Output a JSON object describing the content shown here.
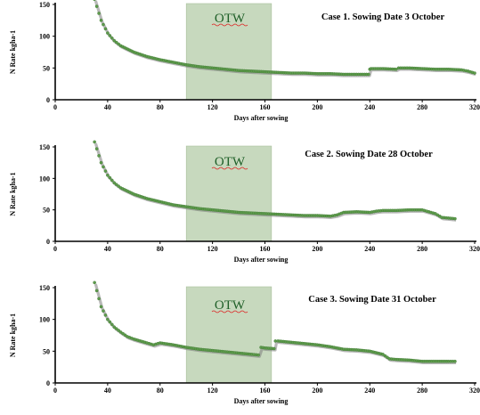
{
  "chart_data": [
    {
      "type": "scatter",
      "title": "Case 1. Sowing Date 3 October",
      "xlabel": "Days after sowing",
      "ylabel": "N Rate kgha-1",
      "xlim": [
        0,
        320
      ],
      "ylim": [
        0,
        150
      ],
      "xticks": [
        "0",
        "40",
        "80",
        "120",
        "160",
        "200",
        "240",
        "280",
        "320"
      ],
      "yticks": [
        "0",
        "50",
        "100",
        "150"
      ],
      "shaded_region": {
        "label": "OTW",
        "x_start": 100,
        "x_end": 165,
        "color": "#c7d9be"
      },
      "series": [
        {
          "color": "#5e9b4c",
          "x": [
            30,
            35,
            40,
            45,
            50,
            60,
            70,
            80,
            90,
            100,
            110,
            120,
            130,
            140,
            150,
            160,
            170,
            180,
            190,
            200,
            210,
            220,
            230,
            239,
            240,
            241,
            250,
            260,
            262,
            270,
            280,
            290,
            300,
            310,
            315,
            320
          ],
          "y": [
            158,
            125,
            105,
            93,
            85,
            75,
            68,
            63,
            59,
            55,
            52,
            50,
            48,
            46,
            45,
            44,
            43,
            42,
            42,
            41,
            41,
            40,
            40,
            40,
            48,
            49,
            49,
            48,
            50,
            50,
            49,
            48,
            48,
            47,
            45,
            42
          ]
        }
      ]
    },
    {
      "type": "scatter",
      "title": "Case 2. Sowing Date 28 October",
      "xlabel": "Days after sowing",
      "ylabel": "N Rate kgha-1",
      "xlim": [
        0,
        320
      ],
      "ylim": [
        0,
        150
      ],
      "xticks": [
        "0",
        "40",
        "80",
        "120",
        "160",
        "200",
        "240",
        "280",
        "320"
      ],
      "yticks": [
        "0",
        "50",
        "100",
        "150"
      ],
      "shaded_region": {
        "label": "OTW",
        "x_start": 100,
        "x_end": 165,
        "color": "#c7d9be"
      },
      "series": [
        {
          "color": "#5e9b4c",
          "x": [
            30,
            35,
            40,
            45,
            50,
            60,
            70,
            80,
            90,
            100,
            110,
            120,
            130,
            140,
            150,
            160,
            170,
            180,
            190,
            200,
            210,
            215,
            220,
            230,
            240,
            245,
            250,
            260,
            270,
            280,
            285,
            290,
            295,
            300,
            305
          ],
          "y": [
            158,
            125,
            105,
            93,
            85,
            75,
            68,
            63,
            58,
            55,
            52,
            50,
            48,
            46,
            45,
            44,
            43,
            42,
            41,
            41,
            40,
            42,
            46,
            47,
            46,
            48,
            49,
            49,
            50,
            50,
            47,
            44,
            38,
            37,
            36
          ]
        }
      ]
    },
    {
      "type": "scatter",
      "title": "Case 3. Sowing Date 31 October",
      "xlabel": "Days after sowing",
      "ylabel": "N Rate kgha-1",
      "xlim": [
        0,
        320
      ],
      "ylim": [
        0,
        150
      ],
      "xticks": [
        "0",
        "40",
        "80",
        "120",
        "160",
        "200",
        "240",
        "280",
        "320"
      ],
      "yticks": [
        "0",
        "50",
        "100",
        "150"
      ],
      "shaded_region": {
        "label": "OTW",
        "x_start": 100,
        "x_end": 165,
        "color": "#c7d9be"
      },
      "series": [
        {
          "color": "#5e9b4c",
          "x": [
            30,
            35,
            40,
            45,
            50,
            55,
            60,
            70,
            75,
            80,
            90,
            100,
            110,
            120,
            130,
            140,
            150,
            155,
            157,
            160,
            167,
            168,
            170,
            180,
            190,
            200,
            210,
            220,
            230,
            240,
            250,
            255,
            260,
            270,
            280,
            290,
            300,
            305
          ],
          "y": [
            158,
            120,
            100,
            88,
            80,
            73,
            69,
            63,
            60,
            63,
            60,
            56,
            53,
            51,
            49,
            47,
            45,
            44,
            56,
            55,
            54,
            66,
            66,
            64,
            62,
            60,
            57,
            53,
            52,
            50,
            45,
            38,
            37,
            36,
            34,
            34,
            34,
            34
          ]
        }
      ]
    }
  ]
}
